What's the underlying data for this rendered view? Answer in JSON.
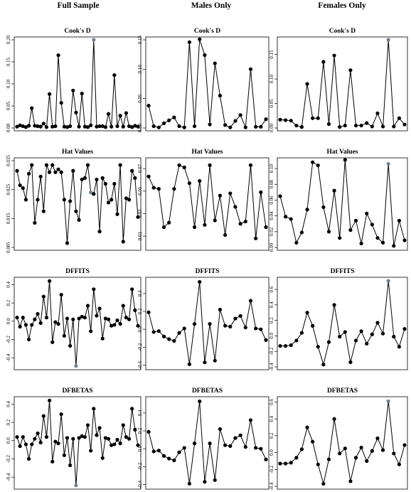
{
  "column_titles": [
    "Full Sample",
    "Males Only",
    "Females Only"
  ],
  "row_titles": [
    "Cook's D",
    "Hat Values",
    "DFFITS",
    "DFBETAS"
  ],
  "colors": {
    "point": "#000000",
    "highlight": "#708090",
    "line": "#000000"
  },
  "chart_data": [
    {
      "type": "line",
      "title": "Cook's D",
      "column": "Full Sample",
      "ylim": [
        0,
        0.2
      ],
      "yticks": [
        "0.00",
        "0.05",
        "0.10",
        "0.15",
        "0.20"
      ],
      "values": [
        0.003,
        0.006,
        0.004,
        0.002,
        0.005,
        0.045,
        0.005,
        0.004,
        0.003,
        0.01,
        0.002,
        0.077,
        0.003,
        0.004,
        0.165,
        0.057,
        0.003,
        0.002,
        0.004,
        0.085,
        0.035,
        0.003,
        0.078,
        0.003,
        0.002,
        0.006,
        0.2,
        0.003,
        0.004,
        0.004,
        0.002,
        0.032,
        0.003,
        0.12,
        0.004,
        0.028,
        0.003,
        0.034,
        0.004,
        0.002,
        0.005,
        0.003
      ],
      "highlight_index": 26
    },
    {
      "type": "line",
      "title": "Cook's D",
      "column": "Males Only",
      "ylim": [
        0,
        0.15
      ],
      "yticks": [
        "0.00",
        "0.05",
        "0.10",
        "0.15"
      ],
      "values": [
        0.038,
        0.003,
        0.001,
        0.008,
        0.013,
        0.018,
        0.003,
        0.001,
        0.146,
        0.003,
        0.151,
        0.124,
        0.006,
        0.11,
        0.055,
        0.005,
        0.001,
        0.012,
        0.022,
        0.001,
        0.1,
        0.002,
        0.002,
        0.015
      ],
      "highlight_index": null
    },
    {
      "type": "line",
      "title": "Cook's D",
      "column": "Females Only",
      "ylim": [
        0,
        0.18
      ],
      "yticks": [
        "0.00",
        "0.05",
        "0.10",
        "0.15"
      ],
      "values": [
        0.017,
        0.016,
        0.015,
        0.005,
        0.002,
        0.09,
        0.02,
        0.02,
        0.135,
        0.008,
        0.148,
        0.002,
        0.005,
        0.118,
        0.005,
        0.005,
        0.01,
        0.003,
        0.03,
        0.003,
        0.18,
        0.003,
        0.02,
        0.007
      ],
      "highlight_index": 20
    },
    {
      "type": "line",
      "title": "Hat Values",
      "column": "Full Sample",
      "ylim": [
        0.005,
        0.035
      ],
      "yticks": [
        "0.005",
        "0.015",
        "0.025",
        "0.035"
      ],
      "values": [
        0.0315,
        0.0265,
        0.0255,
        0.0215,
        0.0305,
        0.0335,
        0.0135,
        0.0215,
        0.0295,
        0.0175,
        0.0335,
        0.031,
        0.0335,
        0.031,
        0.032,
        0.031,
        0.0215,
        0.0065,
        0.021,
        0.0315,
        0.0175,
        0.0145,
        0.0285,
        0.029,
        0.0335,
        0.024,
        0.0235,
        0.0285,
        0.0105,
        0.029,
        0.027,
        0.0205,
        0.0215,
        0.027,
        0.0165,
        0.0335,
        0.007,
        0.022,
        0.0215,
        0.0315,
        0.029,
        0.0155
      ],
      "highlight_index": 25
    },
    {
      "type": "line",
      "title": "Hat Values",
      "column": "Males Only",
      "ylim": [
        0,
        0.077
      ],
      "yticks": [
        "0.01",
        "0.03",
        "0.05",
        "0.07"
      ],
      "values": [
        0.063,
        0.053,
        0.052,
        0.018,
        0.022,
        0.052,
        0.073,
        0.071,
        0.057,
        0.018,
        0.059,
        0.02,
        0.073,
        0.024,
        0.046,
        0.011,
        0.048,
        0.036,
        0.021,
        0.023,
        0.073,
        0.008,
        0.049,
        0.018
      ],
      "highlight_index": null
    },
    {
      "type": "line",
      "title": "Hat Values",
      "column": "Females Only",
      "ylim": [
        0,
        0.11
      ],
      "yticks": [
        "0.00",
        "0.02",
        "0.04",
        "0.06",
        "0.08",
        "0.10"
      ],
      "values": [
        0.065,
        0.039,
        0.036,
        0.006,
        0.019,
        0.048,
        0.108,
        0.104,
        0.051,
        0.02,
        0.072,
        0.012,
        0.111,
        0.022,
        0.034,
        0.005,
        0.043,
        0.029,
        0.012,
        0.006,
        0.106,
        0.002,
        0.034,
        0.009
      ],
      "highlight_index": 20
    },
    {
      "type": "line",
      "title": "DFFITS",
      "column": "Full Sample",
      "ylim": [
        -0.5,
        0.45
      ],
      "yticks": [
        "-0.4",
        "-0.2",
        "0.0",
        "0.2",
        "0.4"
      ],
      "values": [
        0.04,
        -0.06,
        0.04,
        -0.04,
        -0.2,
        -0.04,
        0.02,
        0.08,
        -0.02,
        0.27,
        0.04,
        0.44,
        -0.23,
        -0.01,
        -0.03,
        0.29,
        -0.16,
        0.03,
        -0.27,
        0.02,
        -0.49,
        0.03,
        0.05,
        0.04,
        0.17,
        -0.11,
        0.35,
        0.06,
        0.14,
        -0.19,
        0.03,
        0.02,
        -0.05,
        -0.04,
        0.01,
        -0.03,
        0.17,
        0.04,
        0.02,
        0.35,
        0.12,
        -0.05
      ],
      "highlight_index": 20
    },
    {
      "type": "line",
      "title": "DFFITS",
      "column": "Males Only",
      "ylim": [
        -0.42,
        0.55
      ],
      "yticks": [
        "-0.4",
        "-0.2",
        "0.0",
        "0.2",
        "0.4"
      ],
      "values": [
        0.19,
        -0.03,
        -0.02,
        -0.08,
        -0.11,
        -0.13,
        -0.04,
        0.01,
        -0.39,
        0.06,
        0.53,
        -0.37,
        0.06,
        -0.35,
        0.22,
        0.04,
        0.03,
        0.12,
        0.15,
        0.02,
        0.32,
        0.01,
        0.0,
        -0.12
      ],
      "highlight_index": null
    },
    {
      "type": "line",
      "title": "DFFITS",
      "column": "Females Only",
      "ylim": [
        -0.4,
        0.72
      ],
      "yticks": [
        "-0.4",
        "-0.2",
        "0.0",
        "0.2",
        "0.4",
        "0.6"
      ],
      "values": [
        -0.13,
        -0.13,
        -0.12,
        -0.06,
        0.04,
        0.3,
        0.13,
        -0.14,
        -0.37,
        -0.08,
        0.4,
        -0.01,
        0.05,
        -0.34,
        -0.06,
        0.06,
        -0.1,
        0.02,
        0.17,
        0.03,
        0.71,
        -0.01,
        -0.14,
        0.09
      ],
      "highlight_index": 20
    },
    {
      "type": "line",
      "title": "DFBETAS",
      "column": "Full Sample",
      "ylim": [
        -0.5,
        0.45
      ],
      "yticks": [
        "-0.4",
        "-0.2",
        "0.0",
        "0.2",
        "0.4"
      ],
      "values": [
        0.04,
        -0.06,
        0.04,
        -0.04,
        -0.2,
        -0.04,
        0.02,
        0.08,
        -0.02,
        0.27,
        0.04,
        0.44,
        -0.23,
        -0.01,
        -0.03,
        0.29,
        -0.16,
        0.03,
        -0.27,
        0.02,
        -0.49,
        0.03,
        0.05,
        0.04,
        0.17,
        -0.11,
        0.35,
        0.06,
        0.14,
        -0.19,
        0.03,
        0.02,
        -0.05,
        -0.04,
        0.01,
        -0.03,
        0.17,
        0.04,
        0.02,
        0.35,
        0.12,
        -0.05
      ],
      "highlight_index": 20
    },
    {
      "type": "line",
      "title": "DFBETAS",
      "column": "Males Only",
      "ylim": [
        -0.42,
        0.55
      ],
      "yticks": [
        "-0.4",
        "-0.2",
        "0.0",
        "0.2",
        "0.4"
      ],
      "values": [
        0.19,
        -0.03,
        -0.02,
        -0.08,
        -0.11,
        -0.13,
        -0.04,
        0.01,
        -0.39,
        0.06,
        0.53,
        -0.37,
        0.06,
        -0.35,
        0.22,
        0.04,
        0.03,
        0.12,
        0.15,
        0.02,
        0.32,
        0.01,
        0.0,
        -0.12
      ],
      "highlight_index": null
    },
    {
      "type": "line",
      "title": "DFBETAS",
      "column": "Females Only",
      "ylim": [
        -0.4,
        0.63
      ],
      "yticks": [
        "-0.4",
        "-0.2",
        "0.0",
        "0.2",
        "0.4",
        "0.6"
      ],
      "values": [
        -0.13,
        -0.13,
        -0.12,
        -0.06,
        0.04,
        0.3,
        0.13,
        -0.14,
        -0.37,
        -0.08,
        0.4,
        -0.01,
        0.05,
        -0.34,
        -0.06,
        0.06,
        -0.1,
        0.02,
        0.17,
        0.03,
        0.61,
        -0.01,
        -0.14,
        0.09
      ],
      "highlight_index": 20
    }
  ]
}
